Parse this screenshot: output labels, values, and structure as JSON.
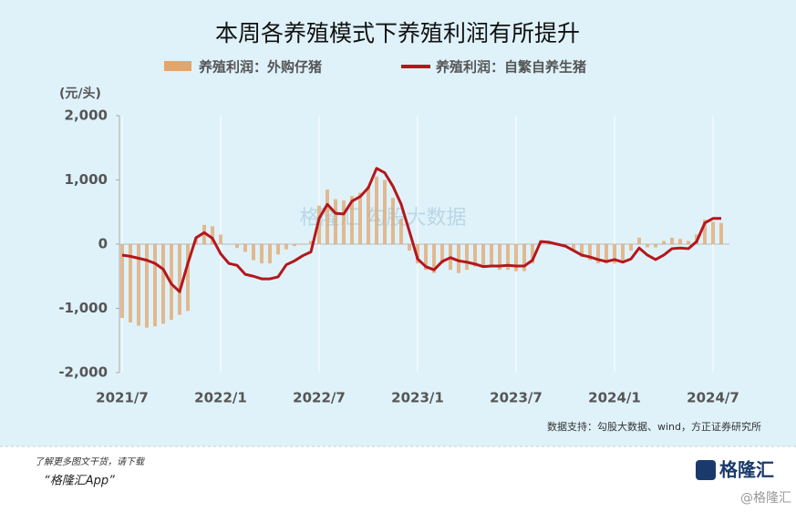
{
  "chart_data": {
    "type": "bar-line",
    "title": "本周各养殖模式下养殖利润有所提升",
    "y_label": "(元/头)",
    "source": "数据支持：勾股大数据、wind，方正证券研究所",
    "watermark": "格隆汇 勾股大数据",
    "categories": [
      "2021/7",
      null,
      null,
      null,
      null,
      null,
      null,
      null,
      null,
      null,
      null,
      null,
      "2022/1",
      null,
      null,
      null,
      null,
      null,
      null,
      null,
      null,
      null,
      null,
      null,
      "2022/7",
      null,
      null,
      null,
      null,
      null,
      null,
      null,
      null,
      null,
      null,
      null,
      "2023/1",
      null,
      null,
      null,
      null,
      null,
      null,
      null,
      null,
      null,
      null,
      null,
      "2023/7",
      null,
      null,
      null,
      null,
      null,
      null,
      null,
      null,
      null,
      null,
      null,
      "2024/1",
      null,
      null,
      null,
      null,
      null,
      null,
      null,
      null,
      null,
      null,
      null,
      "2024/7",
      null
    ],
    "series": [
      {
        "name": "养殖利润：外购仔猪",
        "kind": "bar",
        "color": "#e2a56c",
        "values": [
          -1150,
          -1220,
          -1270,
          -1300,
          -1280,
          -1240,
          -1180,
          -1100,
          -1040,
          100,
          300,
          280,
          150,
          0,
          -60,
          -120,
          -250,
          -300,
          -300,
          -160,
          -80,
          -30,
          0,
          50,
          600,
          850,
          700,
          680,
          750,
          800,
          900,
          1050,
          1000,
          720,
          400,
          -100,
          -300,
          -400,
          -450,
          -300,
          -400,
          -450,
          -400,
          -350,
          -350,
          -350,
          -400,
          -400,
          -420,
          -420,
          -300,
          50,
          30,
          0,
          -50,
          -100,
          -200,
          -250,
          -300,
          -300,
          -300,
          -250,
          -100,
          100,
          -50,
          -50,
          50,
          100,
          80,
          50,
          150,
          380,
          350,
          330
        ]
      },
      {
        "name": "养殖利润：自繁自养生猪",
        "kind": "line",
        "color": "#b5161c",
        "values": [
          -170,
          -190,
          -220,
          -250,
          -300,
          -390,
          -620,
          -740,
          -300,
          100,
          180,
          90,
          -150,
          -300,
          -330,
          -470,
          -500,
          -540,
          -540,
          -510,
          -320,
          -260,
          -180,
          -120,
          400,
          620,
          480,
          470,
          670,
          740,
          880,
          1180,
          1110,
          900,
          620,
          200,
          -230,
          -350,
          -400,
          -270,
          -210,
          -260,
          -280,
          -310,
          -350,
          -340,
          -340,
          -330,
          -340,
          -340,
          -250,
          40,
          30,
          0,
          -30,
          -100,
          -170,
          -200,
          -240,
          -270,
          -240,
          -280,
          -230,
          -60,
          -170,
          -240,
          -170,
          -70,
          -60,
          -70,
          40,
          330,
          400,
          400
        ]
      }
    ],
    "ylim": [
      -2000,
      2000
    ],
    "yticks": [
      {
        "value": 2000,
        "label": "2,000"
      },
      {
        "value": 1000,
        "label": "1,000"
      },
      0,
      {
        "value": -1000,
        "label": "-1,000"
      },
      {
        "value": -2000,
        "label": "-2,000"
      }
    ]
  },
  "footer": {
    "line1": "了解更多图文干货，请下载",
    "line2": "“格隆汇App”",
    "logo": "格隆汇",
    "badge": "@格隆汇"
  }
}
